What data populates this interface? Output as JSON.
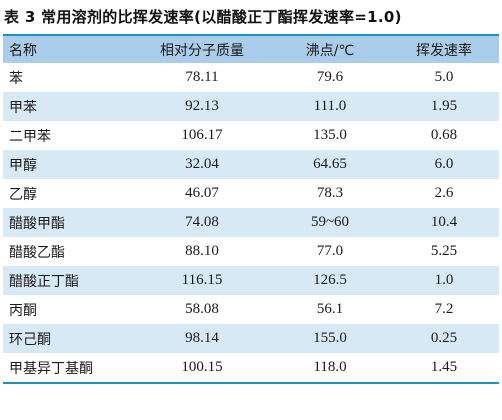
{
  "title": "表 3  常用溶剂的比挥发速率(以醋酸正丁酯挥发速率=1.0)",
  "headers": [
    "名称",
    "相对分子质量",
    "沸点/℃",
    "挥发速率"
  ],
  "rows": [
    [
      "苯",
      "78.11",
      "79.6",
      "5.0"
    ],
    [
      "甲苯",
      "92.13",
      "111.0",
      "1.95"
    ],
    [
      "二甲苯",
      "106.17",
      "135.0",
      "0.68"
    ],
    [
      "甲醇",
      "32.04",
      "64.65",
      "6.0"
    ],
    [
      "乙醇",
      "46.07",
      "78.3",
      "2.6"
    ],
    [
      "醋酸甲酯",
      "74.08",
      "59~60",
      "10.4"
    ],
    [
      "醋酸乙酯",
      "88.10",
      "77.0",
      "5.25"
    ],
    [
      "醋酸正丁酯",
      "116.15",
      "126.5",
      "1.0"
    ],
    [
      "丙酮",
      "58.08",
      "56.1",
      "7.2"
    ],
    [
      "环己酮",
      "98.14",
      "155.0",
      "0.25"
    ],
    [
      "甲基异丁基酮",
      "100.15",
      "118.0",
      "1.45"
    ]
  ],
  "colors": {
    "header_bg": "#a9cdea",
    "stripe_bg": "#d8e9f6",
    "rule": "#1f8fc4"
  }
}
